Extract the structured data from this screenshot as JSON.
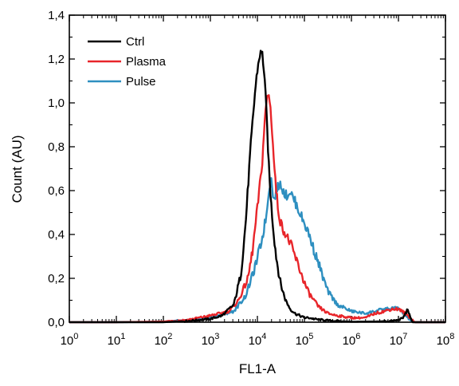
{
  "chart_data": {
    "type": "line",
    "xlabel": "FL1-A",
    "ylabel": "Count (AU)",
    "x_scale": "log10",
    "xlim": [
      1,
      100000000
    ],
    "ylim": [
      0,
      1.4
    ],
    "grid": false,
    "legend_position": "top-left",
    "x_ticks": [
      {
        "base": "10",
        "exp": "0",
        "value": 1
      },
      {
        "base": "10",
        "exp": "1",
        "value": 10
      },
      {
        "base": "10",
        "exp": "2",
        "value": 100
      },
      {
        "base": "10",
        "exp": "3",
        "value": 1000
      },
      {
        "base": "10",
        "exp": "4",
        "value": 10000
      },
      {
        "base": "10",
        "exp": "5",
        "value": 100000
      },
      {
        "base": "10",
        "exp": "6",
        "value": 1000000
      },
      {
        "base": "10",
        "exp": "7",
        "value": 10000000
      },
      {
        "base": "10",
        "exp": "8",
        "value": 100000000
      }
    ],
    "y_ticks": [
      {
        "label": "0,0",
        "value": 0
      },
      {
        "label": "0,2",
        "value": 0.2
      },
      {
        "label": "0,4",
        "value": 0.4
      },
      {
        "label": "0,6",
        "value": 0.6
      },
      {
        "label": "0,8",
        "value": 0.8
      },
      {
        "label": "1,0",
        "value": 1.0
      },
      {
        "label": "1,2",
        "value": 1.2
      },
      {
        "label": "1,4",
        "value": 1.4
      }
    ],
    "series": [
      {
        "name": "Ctrl",
        "color": "#000000",
        "x": [
          1,
          10,
          100,
          316,
          1000,
          1778,
          3162,
          4467,
          5623,
          7079,
          8913,
          10000,
          11220,
          12589,
          14125,
          15849,
          17783,
          19953,
          22387,
          25119,
          28184,
          31623,
          39811,
          50119,
          63096,
          79433,
          100000,
          125893,
          158489,
          199526,
          316228,
          501187,
          1000000,
          3162278,
          7079458,
          10000000,
          12589254,
          15848932,
          17782794,
          19952623,
          25118864,
          100000000
        ],
        "y": [
          0,
          0,
          0,
          0.005,
          0.015,
          0.03,
          0.08,
          0.22,
          0.45,
          0.78,
          1.05,
          1.15,
          1.22,
          1.23,
          1.13,
          0.92,
          0.68,
          0.52,
          0.4,
          0.3,
          0.23,
          0.17,
          0.1,
          0.06,
          0.04,
          0.03,
          0.02,
          0.02,
          0.015,
          0.012,
          0.008,
          0.005,
          0.002,
          0.003,
          0.005,
          0.01,
          0.02,
          0.06,
          0.02,
          0,
          0,
          0
        ]
      },
      {
        "name": "Plasma",
        "color": "#e8252a",
        "x": [
          1,
          10,
          100,
          316,
          1000,
          2512,
          3981,
          6310,
          7943,
          10000,
          12589,
          14125,
          15849,
          17783,
          19953,
          22387,
          25119,
          28184,
          31623,
          39811,
          50119,
          63096,
          79433,
          100000,
          125893,
          158489,
          199526,
          316228,
          501187,
          1000000,
          1995262,
          3162278,
          5011872,
          7079458,
          10000000,
          14125375,
          17782794,
          22387211,
          100000000
        ],
        "y": [
          0,
          0,
          0.003,
          0.01,
          0.03,
          0.05,
          0.1,
          0.2,
          0.33,
          0.52,
          0.72,
          0.9,
          1.02,
          1.04,
          0.92,
          0.74,
          0.6,
          0.5,
          0.45,
          0.4,
          0.36,
          0.3,
          0.24,
          0.18,
          0.13,
          0.1,
          0.07,
          0.04,
          0.03,
          0.02,
          0.02,
          0.04,
          0.05,
          0.06,
          0.06,
          0.04,
          0.02,
          0,
          0
        ]
      },
      {
        "name": "Pulse",
        "color": "#2e8fc0",
        "x": [
          1,
          10,
          100,
          316,
          1000,
          3162,
          5623,
          8913,
          12589,
          15849,
          17783,
          19953,
          22387,
          25119,
          28184,
          31623,
          35481,
          39811,
          44668,
          50119,
          56234,
          63096,
          79433,
          100000,
          125893,
          158489,
          199526,
          251189,
          316228,
          501187,
          1000000,
          1995262,
          3162278,
          5011872,
          7079458,
          8912509,
          11220185,
          14125375,
          17782794,
          22387211,
          100000000
        ],
        "y": [
          0,
          0,
          0.002,
          0.008,
          0.02,
          0.05,
          0.12,
          0.25,
          0.38,
          0.5,
          0.62,
          0.65,
          0.55,
          0.6,
          0.62,
          0.63,
          0.6,
          0.58,
          0.58,
          0.6,
          0.57,
          0.55,
          0.5,
          0.45,
          0.4,
          0.33,
          0.27,
          0.2,
          0.14,
          0.08,
          0.05,
          0.04,
          0.05,
          0.06,
          0.06,
          0.07,
          0.05,
          0.03,
          0.01,
          0,
          0
        ]
      }
    ]
  }
}
